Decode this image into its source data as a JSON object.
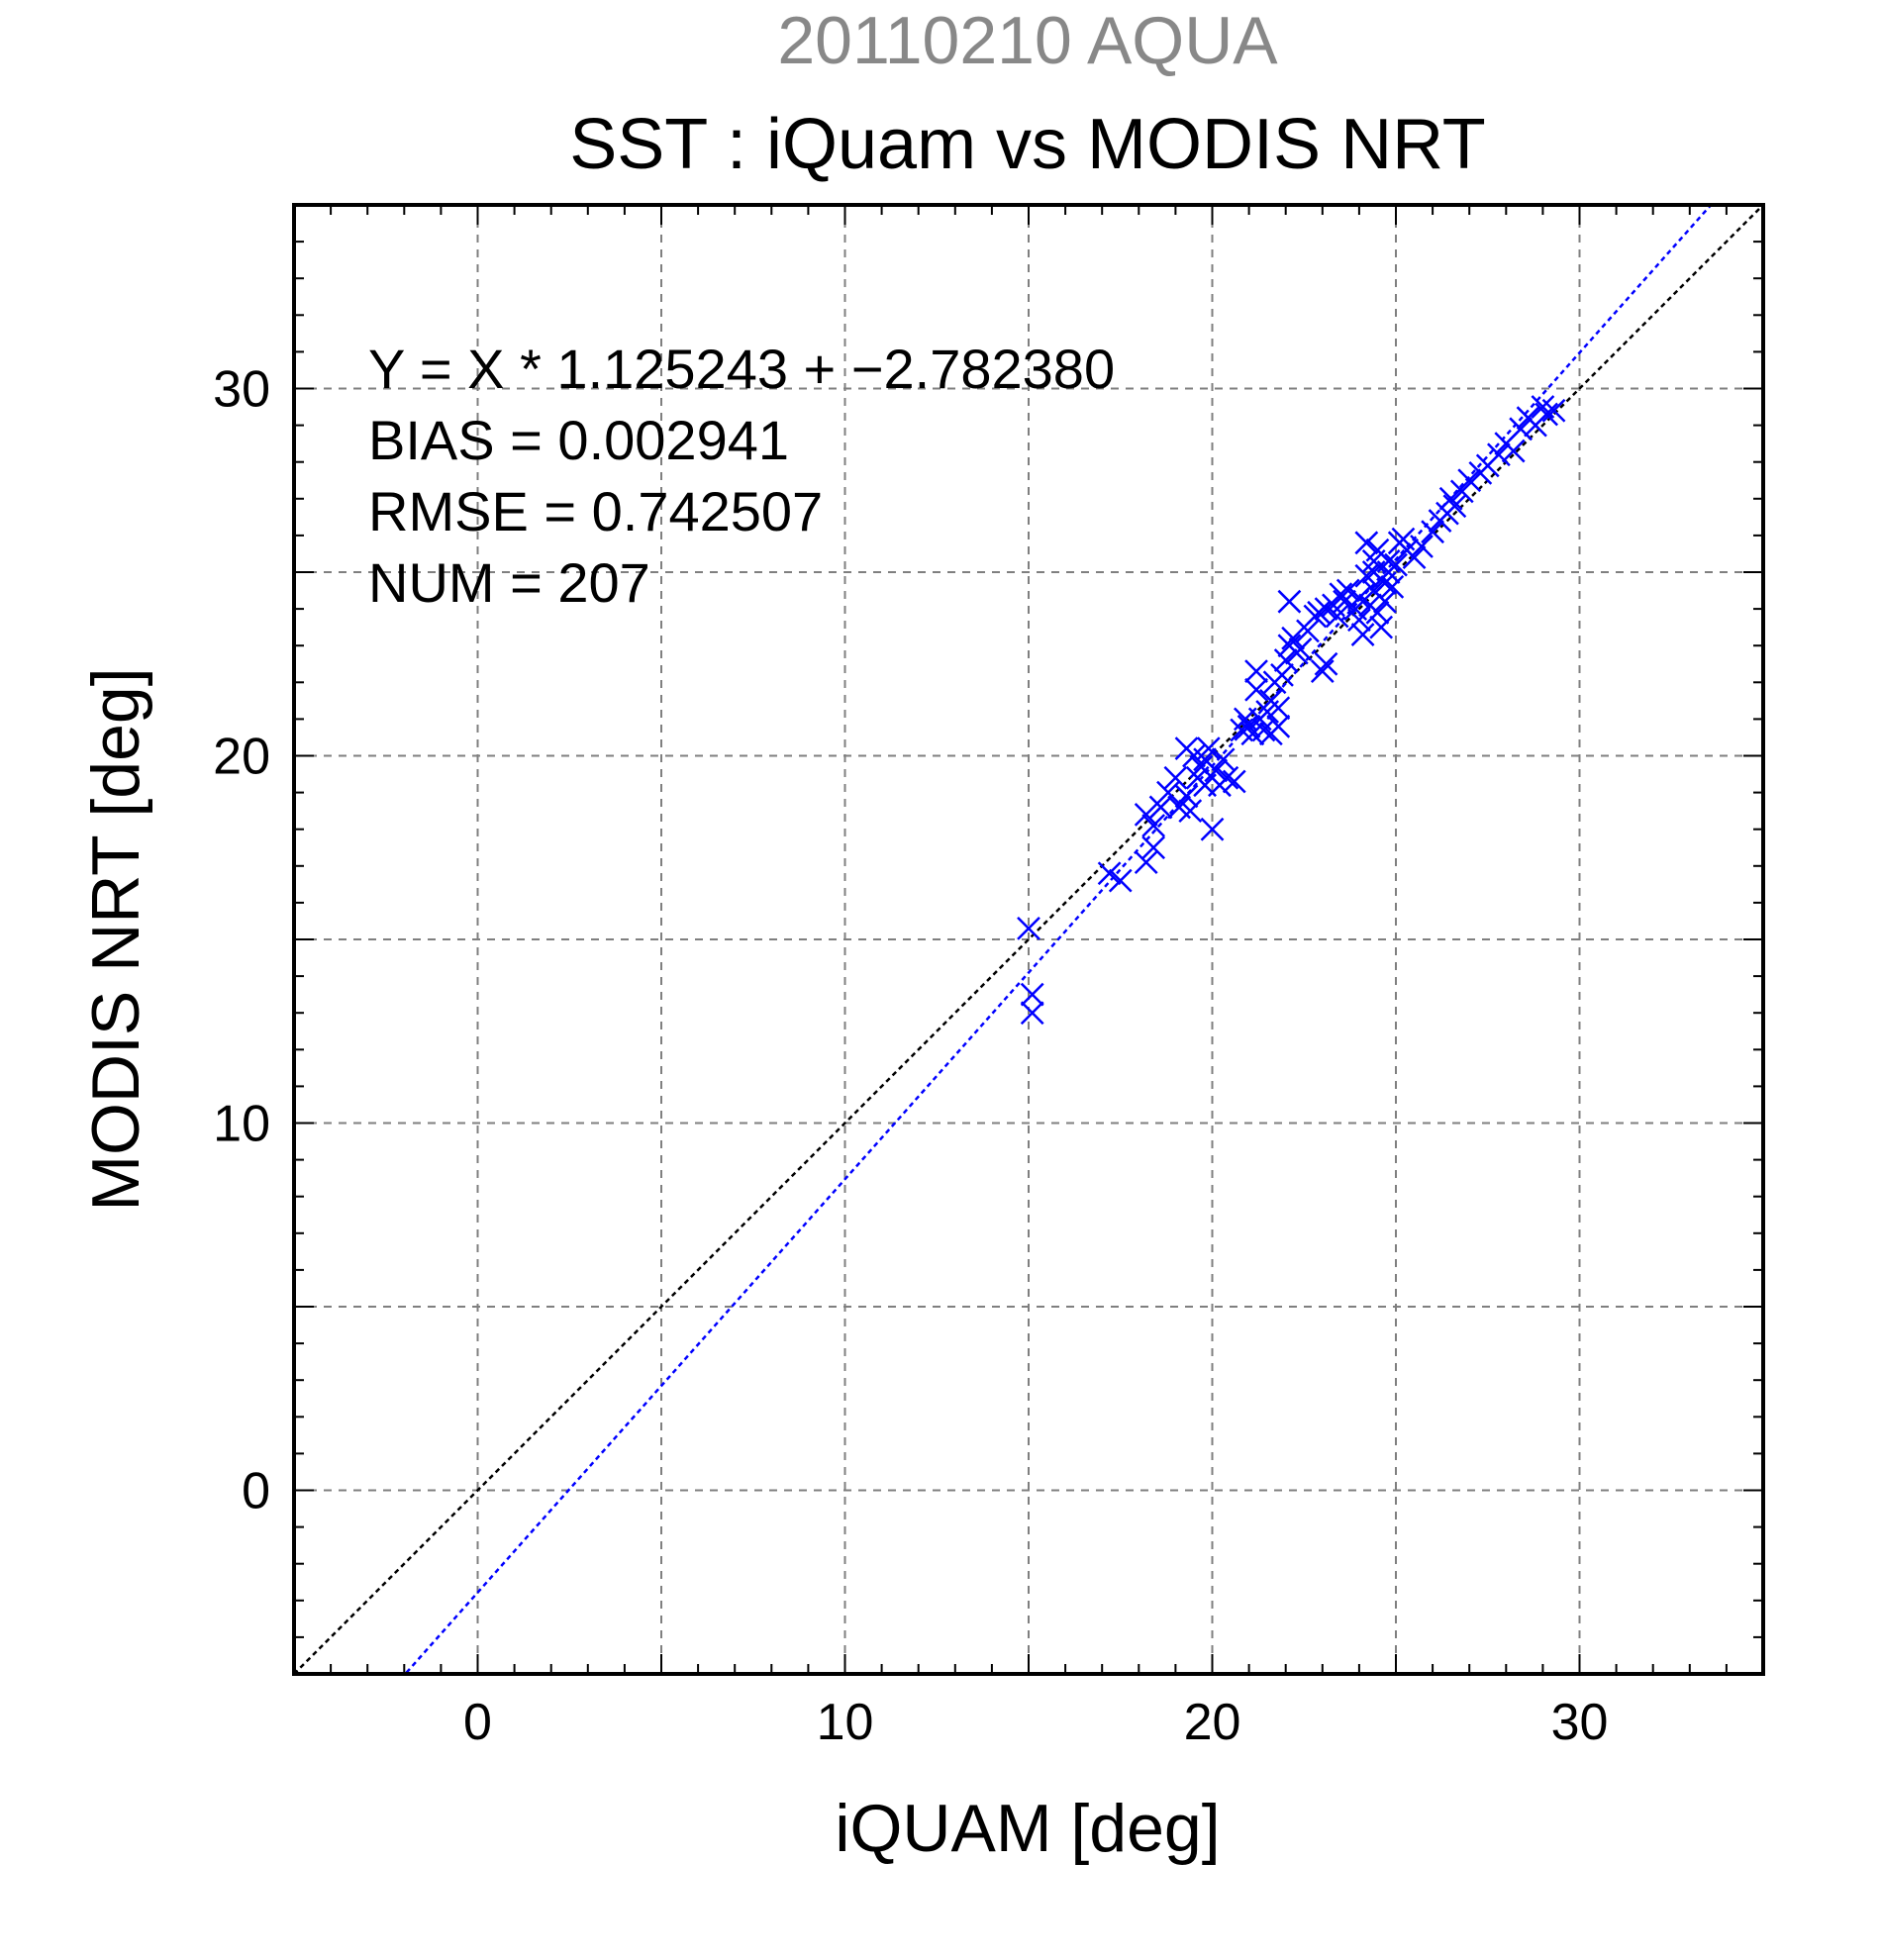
{
  "chart_data": {
    "type": "scatter",
    "title": "20110210 AQUA",
    "subtitle": "SST : iQuam vs MODIS NRT",
    "xlabel": "iQUAM [deg]",
    "ylabel": "MODIS NRT [deg]",
    "xlim": [
      -5,
      35
    ],
    "ylim": [
      -5,
      35
    ],
    "xticks": [
      0,
      10,
      20,
      30
    ],
    "yticks": [
      0,
      10,
      20,
      30
    ],
    "tick_labels": {
      "x": [
        "0",
        "10",
        "20",
        "30"
      ],
      "y": [
        "0",
        "10",
        "20",
        "30"
      ]
    },
    "grid": true,
    "grid_step": 5,
    "stats": {
      "line1": "Y = X * 1.125243 + −2.782380",
      "line2": "BIAS = 0.002941",
      "line3": "RMSE = 0.742507",
      "line4": "NUM = 207"
    },
    "fit": {
      "slope": 1.125243,
      "intercept": -2.78238
    },
    "marker": "x",
    "colors": {
      "points": "#0000ff",
      "fit_line": "#0000ff",
      "identity_line": "#000000",
      "grid": "#7f7f7f",
      "title": "#888888"
    },
    "series": [
      {
        "points": [
          [
            15.0,
            15.3
          ],
          [
            15.1,
            13.5
          ],
          [
            15.1,
            13.0
          ],
          [
            17.2,
            16.8
          ],
          [
            17.5,
            16.6
          ],
          [
            18.2,
            17.1
          ],
          [
            18.4,
            17.5
          ],
          [
            18.2,
            18.4
          ],
          [
            18.4,
            18.1
          ],
          [
            18.6,
            18.6
          ],
          [
            18.8,
            19.0
          ],
          [
            19.0,
            19.4
          ],
          [
            19.1,
            18.6
          ],
          [
            19.3,
            18.9
          ],
          [
            19.4,
            18.5
          ],
          [
            19.3,
            20.2
          ],
          [
            19.5,
            20.0
          ],
          [
            19.6,
            19.4
          ],
          [
            19.7,
            19.7
          ],
          [
            19.8,
            19.2
          ],
          [
            19.8,
            19.9
          ],
          [
            19.9,
            20.2
          ],
          [
            20.0,
            18.0
          ],
          [
            20.1,
            19.6
          ],
          [
            20.2,
            19.2
          ],
          [
            20.3,
            19.9
          ],
          [
            20.4,
            19.4
          ],
          [
            20.6,
            19.3
          ],
          [
            20.8,
            20.7
          ],
          [
            20.9,
            21.0
          ],
          [
            21.0,
            20.8
          ],
          [
            21.1,
            20.6
          ],
          [
            21.2,
            21.8
          ],
          [
            21.2,
            22.3
          ],
          [
            21.3,
            21.0
          ],
          [
            21.4,
            20.7
          ],
          [
            21.5,
            21.2
          ],
          [
            21.6,
            21.5
          ],
          [
            21.6,
            20.6
          ],
          [
            21.7,
            22.0
          ],
          [
            21.8,
            21.3
          ],
          [
            21.8,
            20.8
          ],
          [
            21.9,
            22.2
          ],
          [
            22.0,
            22.6
          ],
          [
            22.1,
            23.0
          ],
          [
            22.1,
            24.2
          ],
          [
            22.2,
            23.2
          ],
          [
            22.3,
            22.8
          ],
          [
            22.4,
            22.9
          ],
          [
            22.6,
            23.4
          ],
          [
            22.8,
            23.8
          ],
          [
            22.9,
            23.9
          ],
          [
            23.0,
            22.3
          ],
          [
            23.1,
            22.5
          ],
          [
            23.1,
            24.0
          ],
          [
            23.3,
            24.1
          ],
          [
            23.4,
            23.8
          ],
          [
            23.5,
            24.4
          ],
          [
            23.6,
            24.2
          ],
          [
            23.7,
            24.5
          ],
          [
            23.9,
            24.0
          ],
          [
            24.0,
            23.7
          ],
          [
            24.0,
            24.3
          ],
          [
            24.1,
            23.3
          ],
          [
            24.2,
            24.9
          ],
          [
            24.2,
            25.8
          ],
          [
            24.3,
            24.1
          ],
          [
            24.4,
            24.5
          ],
          [
            24.4,
            25.3
          ],
          [
            24.4,
            25.0
          ],
          [
            24.5,
            23.9
          ],
          [
            24.5,
            25.6
          ],
          [
            24.6,
            24.8
          ],
          [
            24.6,
            23.5
          ],
          [
            24.7,
            24.7
          ],
          [
            24.7,
            24.2
          ],
          [
            24.8,
            25.0
          ],
          [
            24.8,
            25.3
          ],
          [
            24.9,
            24.6
          ],
          [
            25.0,
            25.2
          ],
          [
            25.1,
            25.8
          ],
          [
            25.2,
            25.9
          ],
          [
            25.3,
            25.6
          ],
          [
            25.5,
            25.4
          ],
          [
            25.7,
            25.7
          ],
          [
            26.0,
            26.1
          ],
          [
            26.2,
            26.4
          ],
          [
            26.4,
            26.6
          ],
          [
            26.5,
            27.0
          ],
          [
            26.6,
            26.8
          ],
          [
            26.8,
            27.2
          ],
          [
            27.0,
            27.5
          ],
          [
            27.3,
            27.7
          ],
          [
            27.5,
            27.9
          ],
          [
            27.8,
            28.2
          ],
          [
            28.0,
            28.5
          ],
          [
            28.2,
            28.3
          ],
          [
            28.4,
            28.9
          ],
          [
            28.6,
            29.2
          ],
          [
            28.8,
            29.0
          ],
          [
            29.0,
            29.5
          ],
          [
            29.1,
            29.3
          ],
          [
            29.3,
            29.4
          ]
        ]
      }
    ]
  }
}
